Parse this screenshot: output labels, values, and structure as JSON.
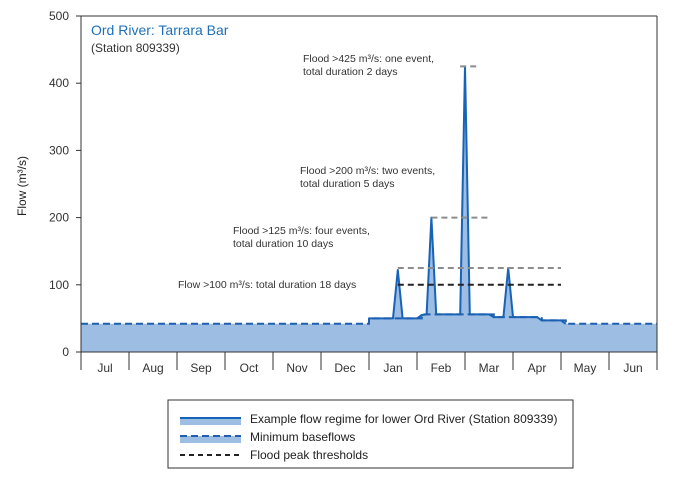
{
  "chart_data": {
    "type": "area",
    "title": "Ord River: Tarrara Bar",
    "subtitle": "(Station 809339)",
    "xlabel": "",
    "ylabel": "Flow (m³/s)",
    "ylim": [
      0,
      500
    ],
    "yticks": [
      0,
      100,
      200,
      300,
      400,
      500
    ],
    "categories": [
      "Jul",
      "Aug",
      "Sep",
      "Oct",
      "Nov",
      "Dec",
      "Jan",
      "Feb",
      "Mar",
      "Apr",
      "May",
      "Jun"
    ],
    "grid": false,
    "legend_position": "bottom",
    "series": [
      {
        "name": "Example flow regime for lower Ord River (Station 809339)",
        "points": [
          [
            0,
            42
          ],
          [
            6,
            42
          ],
          [
            6,
            50
          ],
          [
            6.5,
            50
          ],
          [
            6.6,
            122
          ],
          [
            6.7,
            50
          ],
          [
            7.0,
            50
          ],
          [
            7.1,
            55
          ],
          [
            7.2,
            56
          ],
          [
            7.3,
            200
          ],
          [
            7.4,
            56
          ],
          [
            7.6,
            56
          ],
          [
            7.8,
            56
          ],
          [
            7.9,
            56
          ],
          [
            8.0,
            425
          ],
          [
            8.1,
            56
          ],
          [
            8.5,
            56
          ],
          [
            8.6,
            52
          ],
          [
            8.8,
            52
          ],
          [
            8.9,
            125
          ],
          [
            9.0,
            52
          ],
          [
            9.5,
            52
          ],
          [
            9.6,
            47
          ],
          [
            10.0,
            47
          ],
          [
            10.1,
            42
          ],
          [
            12,
            42
          ]
        ]
      },
      {
        "name": "Minimum baseflows",
        "points": [
          [
            0,
            42
          ],
          [
            6,
            42
          ],
          [
            6,
            50
          ],
          [
            7.1,
            50
          ],
          [
            7.1,
            56
          ],
          [
            8.6,
            56
          ],
          [
            8.6,
            52
          ],
          [
            9.6,
            52
          ],
          [
            9.6,
            47
          ],
          [
            10.1,
            47
          ],
          [
            10.1,
            42
          ],
          [
            12,
            42
          ]
        ]
      }
    ],
    "thresholds": [
      {
        "name": "Flood peak thresholds",
        "value": 100,
        "x_range": [
          6.6,
          10.0
        ],
        "label": "Flow >100 m³/s: total duration 18 days"
      },
      {
        "value": 125,
        "x_range": [
          6.6,
          10.0
        ],
        "label": "Flood >125 m³/s: four events, total duration 10 days"
      },
      {
        "value": 200,
        "x_range": [
          7.3,
          8.5
        ],
        "label": "Flood >200 m³/s: two events, total duration 5 days"
      },
      {
        "value": 425,
        "x_range": [
          7.9,
          8.3
        ],
        "label": "Flood >425 m³/s: one event, total duration 2 days"
      }
    ],
    "annotations": [
      {
        "lines": [
          "Flood >425 m³/s: one event,",
          "total duration 2 days"
        ]
      },
      {
        "lines": [
          "Flood >200 m³/s: two events,",
          "total duration 5 days"
        ]
      },
      {
        "lines": [
          "Flood >125 m³/s: four events,",
          "total duration 10 days"
        ]
      },
      {
        "lines": [
          "Flow >100 m³/s: total duration 18 days"
        ]
      }
    ],
    "legend": [
      "Example flow regime for lower Ord River (Station 809339)",
      "Minimum baseflows",
      "Flood peak thresholds"
    ],
    "colors": {
      "area_fill": "#9dbde3",
      "flow_line": "#1763b8",
      "baseflow_line": "#1f5fb0",
      "threshold_dark": "#222222",
      "threshold_grey": "#8c8c8c",
      "title": "#1f6fb8",
      "axis": "#333333"
    }
  }
}
